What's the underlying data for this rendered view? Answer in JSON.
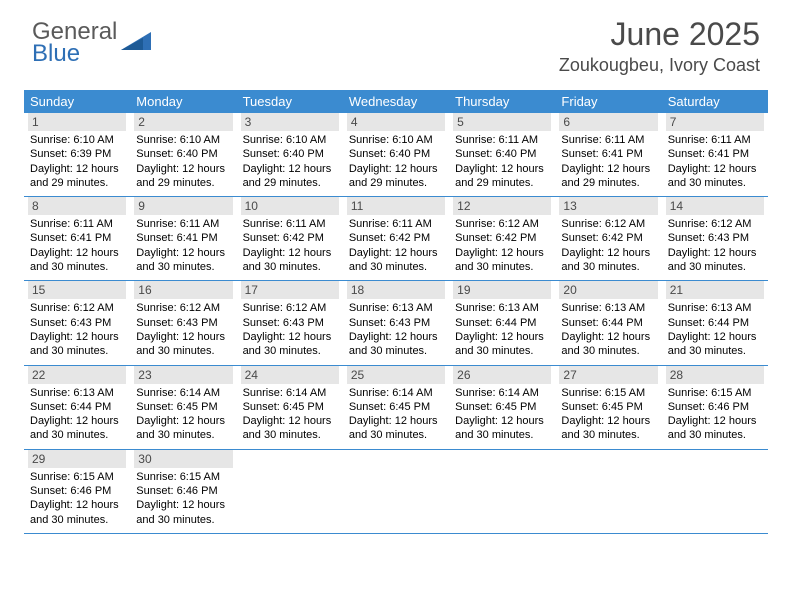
{
  "logo": {
    "word1": "General",
    "word2": "Blue",
    "shape_color": "#2e6fb5"
  },
  "header": {
    "month_title": "June 2025",
    "location": "Zoukougbeu, Ivory Coast"
  },
  "colors": {
    "header_bar": "#3b8bd0",
    "day_number_bg": "#e6e6e6",
    "row_divider": "#3b8bd0",
    "weekday_text": "#ffffff",
    "text": "#000000",
    "title_text": "#4a4a4a"
  },
  "weekdays": [
    "Sunday",
    "Monday",
    "Tuesday",
    "Wednesday",
    "Thursday",
    "Friday",
    "Saturday"
  ],
  "days": [
    {
      "num": "1",
      "sunrise": "6:10 AM",
      "sunset": "6:39 PM",
      "daylight": "12 hours and 29 minutes."
    },
    {
      "num": "2",
      "sunrise": "6:10 AM",
      "sunset": "6:40 PM",
      "daylight": "12 hours and 29 minutes."
    },
    {
      "num": "3",
      "sunrise": "6:10 AM",
      "sunset": "6:40 PM",
      "daylight": "12 hours and 29 minutes."
    },
    {
      "num": "4",
      "sunrise": "6:10 AM",
      "sunset": "6:40 PM",
      "daylight": "12 hours and 29 minutes."
    },
    {
      "num": "5",
      "sunrise": "6:11 AM",
      "sunset": "6:40 PM",
      "daylight": "12 hours and 29 minutes."
    },
    {
      "num": "6",
      "sunrise": "6:11 AM",
      "sunset": "6:41 PM",
      "daylight": "12 hours and 29 minutes."
    },
    {
      "num": "7",
      "sunrise": "6:11 AM",
      "sunset": "6:41 PM",
      "daylight": "12 hours and 30 minutes."
    },
    {
      "num": "8",
      "sunrise": "6:11 AM",
      "sunset": "6:41 PM",
      "daylight": "12 hours and 30 minutes."
    },
    {
      "num": "9",
      "sunrise": "6:11 AM",
      "sunset": "6:41 PM",
      "daylight": "12 hours and 30 minutes."
    },
    {
      "num": "10",
      "sunrise": "6:11 AM",
      "sunset": "6:42 PM",
      "daylight": "12 hours and 30 minutes."
    },
    {
      "num": "11",
      "sunrise": "6:11 AM",
      "sunset": "6:42 PM",
      "daylight": "12 hours and 30 minutes."
    },
    {
      "num": "12",
      "sunrise": "6:12 AM",
      "sunset": "6:42 PM",
      "daylight": "12 hours and 30 minutes."
    },
    {
      "num": "13",
      "sunrise": "6:12 AM",
      "sunset": "6:42 PM",
      "daylight": "12 hours and 30 minutes."
    },
    {
      "num": "14",
      "sunrise": "6:12 AM",
      "sunset": "6:43 PM",
      "daylight": "12 hours and 30 minutes."
    },
    {
      "num": "15",
      "sunrise": "6:12 AM",
      "sunset": "6:43 PM",
      "daylight": "12 hours and 30 minutes."
    },
    {
      "num": "16",
      "sunrise": "6:12 AM",
      "sunset": "6:43 PM",
      "daylight": "12 hours and 30 minutes."
    },
    {
      "num": "17",
      "sunrise": "6:12 AM",
      "sunset": "6:43 PM",
      "daylight": "12 hours and 30 minutes."
    },
    {
      "num": "18",
      "sunrise": "6:13 AM",
      "sunset": "6:43 PM",
      "daylight": "12 hours and 30 minutes."
    },
    {
      "num": "19",
      "sunrise": "6:13 AM",
      "sunset": "6:44 PM",
      "daylight": "12 hours and 30 minutes."
    },
    {
      "num": "20",
      "sunrise": "6:13 AM",
      "sunset": "6:44 PM",
      "daylight": "12 hours and 30 minutes."
    },
    {
      "num": "21",
      "sunrise": "6:13 AM",
      "sunset": "6:44 PM",
      "daylight": "12 hours and 30 minutes."
    },
    {
      "num": "22",
      "sunrise": "6:13 AM",
      "sunset": "6:44 PM",
      "daylight": "12 hours and 30 minutes."
    },
    {
      "num": "23",
      "sunrise": "6:14 AM",
      "sunset": "6:45 PM",
      "daylight": "12 hours and 30 minutes."
    },
    {
      "num": "24",
      "sunrise": "6:14 AM",
      "sunset": "6:45 PM",
      "daylight": "12 hours and 30 minutes."
    },
    {
      "num": "25",
      "sunrise": "6:14 AM",
      "sunset": "6:45 PM",
      "daylight": "12 hours and 30 minutes."
    },
    {
      "num": "26",
      "sunrise": "6:14 AM",
      "sunset": "6:45 PM",
      "daylight": "12 hours and 30 minutes."
    },
    {
      "num": "27",
      "sunrise": "6:15 AM",
      "sunset": "6:45 PM",
      "daylight": "12 hours and 30 minutes."
    },
    {
      "num": "28",
      "sunrise": "6:15 AM",
      "sunset": "6:46 PM",
      "daylight": "12 hours and 30 minutes."
    },
    {
      "num": "29",
      "sunrise": "6:15 AM",
      "sunset": "6:46 PM",
      "daylight": "12 hours and 30 minutes."
    },
    {
      "num": "30",
      "sunrise": "6:15 AM",
      "sunset": "6:46 PM",
      "daylight": "12 hours and 30 minutes."
    }
  ],
  "labels": {
    "sunrise_prefix": "Sunrise: ",
    "sunset_prefix": "Sunset: ",
    "daylight_prefix": "Daylight: "
  },
  "layout": {
    "first_weekday_index": 0,
    "weeks": 5
  }
}
